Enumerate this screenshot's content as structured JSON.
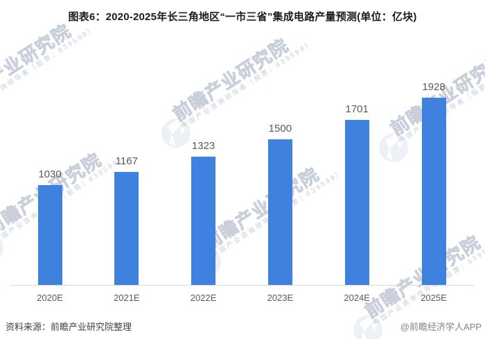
{
  "title": "图表6：2020-2025年长三角地区“一市三省”集成电路产量预测(单位：亿块)",
  "chart_data": {
    "type": "bar",
    "categories": [
      "2020E",
      "2021E",
      "2022E",
      "2023E",
      "2024E",
      "2025E"
    ],
    "values": [
      1030,
      1167,
      1323,
      1500,
      1701,
      1928
    ],
    "title": "图表6：2020-2025年长三角地区“一市三省”集成电路产量预测(单位：亿块)",
    "xlabel": "",
    "ylabel": "",
    "unit": "亿块",
    "ylim": [
      0,
      2900
    ],
    "grid": false,
    "legend": "none",
    "data_labels": true,
    "bar_color": "#3F81DE",
    "axis_line_color": "#d9d9d9",
    "label_color": "#595959"
  },
  "footer": {
    "source": "资料来源：前瞻产业研究院整理",
    "credit": "@前瞻经济学人APP"
  },
  "watermark": {
    "big": "前瞻产业研究院",
    "small": "中国产业咨询领导者（股票：839599）"
  }
}
